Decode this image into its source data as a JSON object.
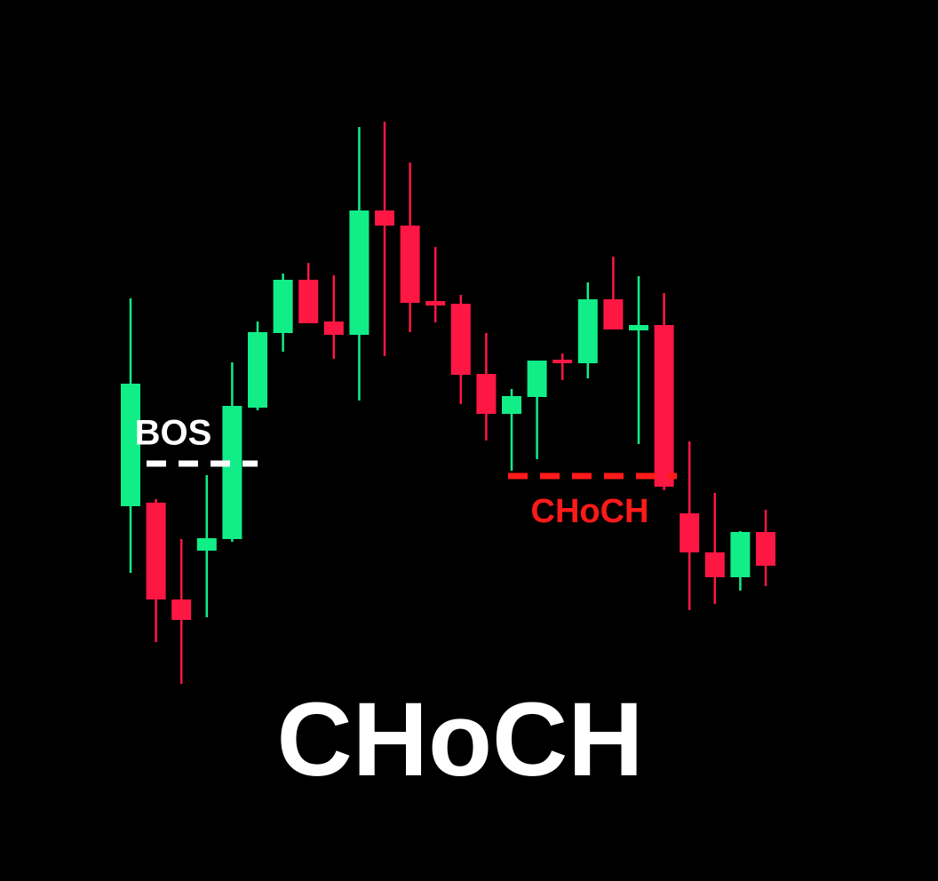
{
  "chart_data": {
    "type": "candlestick",
    "title": "CHoCH",
    "up_color": "#11ee88",
    "down_color": "#ff1744",
    "ylim": [
      8,
      1000
    ],
    "open": [
      430,
      434,
      325,
      380,
      393,
      541,
      625,
      685,
      638,
      623,
      763,
      746,
      661,
      658,
      579,
      534,
      553,
      595,
      591,
      663,
      628,
      634,
      422,
      378,
      350,
      401
    ],
    "high": [
      664,
      438,
      393,
      465,
      592,
      638,
      692,
      704,
      690,
      857,
      863,
      817,
      722,
      668,
      625,
      562,
      594,
      602,
      682,
      711,
      689,
      670,
      503,
      445,
      402,
      426
    ],
    "low": [
      355,
      277,
      230,
      305,
      390,
      538,
      604,
      636,
      596,
      549,
      599,
      626,
      637,
      545,
      504,
      470,
      483,
      572,
      574,
      629,
      500,
      448,
      313,
      320,
      335,
      340
    ],
    "close": [
      568,
      325,
      302,
      394,
      543,
      626,
      685,
      636,
      623,
      763,
      746,
      659,
      656,
      578,
      534,
      554,
      594,
      591,
      663,
      629,
      634,
      452,
      378,
      350,
      401,
      363
    ],
    "annotations": [
      {
        "text": "BOS",
        "level": 478,
        "color": "#ffffff"
      },
      {
        "text": "CHoCH",
        "level": 464,
        "color": "#ff1a1a"
      }
    ]
  }
}
